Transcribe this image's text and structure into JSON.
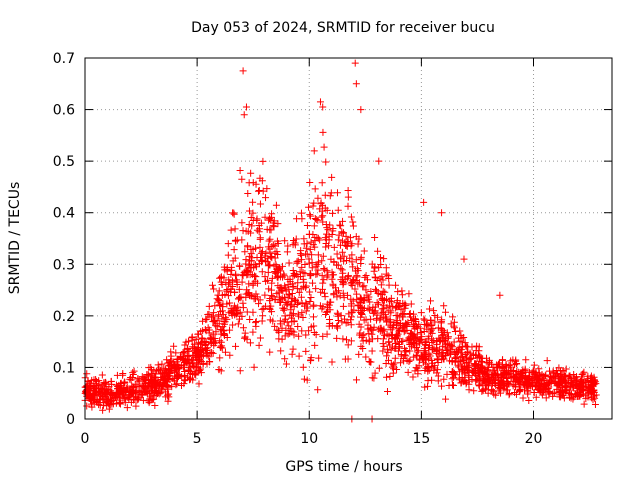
{
  "chart_data": {
    "type": "scatter",
    "title": "Day 053 of 2024, SRMTID for receiver bucu",
    "xlabel": "GPS time / hours",
    "ylabel": "SRMTID / TECUs",
    "xlim": [
      0,
      23.5
    ],
    "ylim": [
      0,
      0.7
    ],
    "x_ticks": [
      0,
      5,
      10,
      15,
      20
    ],
    "x_tick_labels": [
      "0",
      "5",
      "10",
      "15",
      "20"
    ],
    "y_ticks": [
      0,
      0.1,
      0.2,
      0.3,
      0.4,
      0.5,
      0.6,
      0.7
    ],
    "y_tick_labels": [
      "0",
      "0.1",
      "0.2",
      "0.3",
      "0.4",
      "0.5",
      "0.6",
      "0.7"
    ],
    "grid": true,
    "marker": "+",
    "marker_color": "#ff0000",
    "series": [
      {
        "name": "SRMTID",
        "profile": [
          [
            0.0,
            0.055,
            0.025
          ],
          [
            1.0,
            0.05,
            0.025
          ],
          [
            2.0,
            0.055,
            0.025
          ],
          [
            3.0,
            0.065,
            0.03
          ],
          [
            4.0,
            0.09,
            0.035
          ],
          [
            5.0,
            0.12,
            0.04
          ],
          [
            6.0,
            0.18,
            0.08
          ],
          [
            7.0,
            0.3,
            0.14
          ],
          [
            8.0,
            0.3,
            0.14
          ],
          [
            9.0,
            0.22,
            0.09
          ],
          [
            10.0,
            0.28,
            0.14
          ],
          [
            10.5,
            0.35,
            0.2
          ],
          [
            11.0,
            0.3,
            0.15
          ],
          [
            12.0,
            0.25,
            0.12
          ],
          [
            12.5,
            0.2,
            0.1
          ],
          [
            13.0,
            0.22,
            0.11
          ],
          [
            14.0,
            0.17,
            0.07
          ],
          [
            15.0,
            0.14,
            0.06
          ],
          [
            16.0,
            0.14,
            0.07
          ],
          [
            17.0,
            0.1,
            0.04
          ],
          [
            18.0,
            0.08,
            0.03
          ],
          [
            19.0,
            0.08,
            0.03
          ],
          [
            20.0,
            0.075,
            0.025
          ],
          [
            21.0,
            0.07,
            0.025
          ],
          [
            22.0,
            0.065,
            0.025
          ],
          [
            22.8,
            0.06,
            0.025
          ]
        ],
        "highlights": [
          [
            7.05,
            0.675
          ],
          [
            12.05,
            0.69
          ],
          [
            12.1,
            0.65
          ],
          [
            10.5,
            0.615
          ],
          [
            10.6,
            0.605
          ],
          [
            7.2,
            0.605
          ],
          [
            7.1,
            0.59
          ],
          [
            12.3,
            0.6
          ],
          [
            15.1,
            0.42
          ],
          [
            15.9,
            0.4
          ],
          [
            16.9,
            0.31
          ],
          [
            18.5,
            0.24
          ],
          [
            13.1,
            0.5
          ],
          [
            8.4,
            0.38
          ],
          [
            9.9,
            0.34
          ],
          [
            11.9,
            0.0
          ],
          [
            12.8,
            0.0
          ]
        ]
      }
    ]
  }
}
